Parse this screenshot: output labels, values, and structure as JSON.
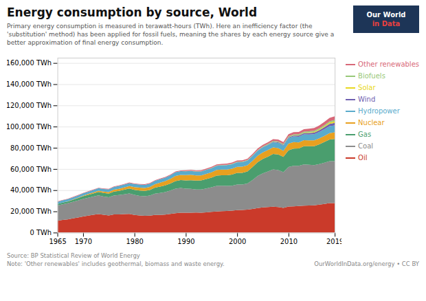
{
  "chart_data": {
    "type": "area",
    "stacked": true,
    "title": "Energy consumption by source, World",
    "subtitle": "Primary energy consumption is measured in terawatt-hours (TWh). Here an inefficiency factor (the 'substitution' method) has been applied for fossil fuels, meaning the shares by each energy source give a better approximation of final energy consumption.",
    "source": "Source: BP Statistical Review of World Energy",
    "note": "Note: 'Other renewables' includes geothermal, biomass and waste energy.",
    "credit": "OurWorldInData.org/energy • CC BY",
    "logo": [
      "Our World",
      "in Data"
    ],
    "x": [
      1965,
      1966,
      1967,
      1968,
      1969,
      1970,
      1971,
      1972,
      1973,
      1974,
      1975,
      1976,
      1977,
      1978,
      1979,
      1980,
      1981,
      1982,
      1983,
      1984,
      1985,
      1986,
      1987,
      1988,
      1989,
      1990,
      1991,
      1992,
      1993,
      1994,
      1995,
      1996,
      1997,
      1998,
      1999,
      2000,
      2001,
      2002,
      2003,
      2004,
      2005,
      2006,
      2007,
      2008,
      2009,
      2010,
      2011,
      2012,
      2013,
      2014,
      2015,
      2016,
      2017,
      2018,
      2019
    ],
    "series": [
      {
        "name": "Oil",
        "color": "#ca3a2a",
        "values": [
          11105,
          11884,
          12478,
          13428,
          14225,
          15261,
          15991,
          16820,
          17485,
          16789,
          16174,
          17136,
          17098,
          17449,
          17617,
          16700,
          16147,
          15846,
          15920,
          16577,
          16627,
          17046,
          17575,
          18269,
          18701,
          18832,
          18806,
          18837,
          18818,
          19153,
          19497,
          19845,
          20156,
          20445,
          20738,
          21258,
          21277,
          21681,
          22337,
          23160,
          23747,
          24060,
          24459,
          24023,
          23209,
          24618,
          24753,
          25018,
          25327,
          25534,
          25791,
          26300,
          27034,
          27800,
          27822
        ]
      },
      {
        "name": "Coal",
        "color": "#8c8c8c",
        "values": [
          14491,
          14847,
          15138,
          15528,
          16095,
          16529,
          16849,
          17120,
          17589,
          17270,
          17146,
          17836,
          18276,
          18665,
          19277,
          18948,
          18568,
          18481,
          18977,
          20169,
          20844,
          21205,
          22085,
          23229,
          23332,
          22578,
          22396,
          21874,
          21829,
          22526,
          23182,
          24210,
          24082,
          23562,
          23491,
          24077,
          24049,
          24561,
          27265,
          30285,
          32165,
          33561,
          35131,
          34992,
          33783,
          37239,
          38291,
          37979,
          39031,
          38476,
          37788,
          38310,
          38968,
          39636,
          39636
        ]
      },
      {
        "name": "Gas",
        "color": "#4a9e6e",
        "values": [
          1395,
          1558,
          1720,
          1946,
          2190,
          2510,
          2817,
          3042,
          3299,
          3394,
          3491,
          3795,
          4025,
          4316,
          4639,
          4723,
          4948,
          5014,
          5282,
          5702,
          5942,
          6200,
          6607,
          7147,
          7499,
          7778,
          8251,
          8277,
          8500,
          8827,
          9098,
          9630,
          9879,
          10098,
          10456,
          10959,
          11112,
          11473,
          12233,
          12999,
          13612,
          14029,
          14655,
          14715,
          14374,
          15748,
          16117,
          16355,
          17090,
          17490,
          17955,
          18682,
          19504,
          20415,
          20897
        ]
      },
      {
        "name": "Nuclear",
        "color": "#e8a020",
        "values": [
          70,
          101,
          165,
          258,
          372,
          540,
          694,
          864,
          1101,
          1282,
          1469,
          1685,
          1905,
          2082,
          2334,
          2524,
          2693,
          2758,
          2952,
          3236,
          3698,
          4083,
          4460,
          4856,
          4934,
          5016,
          5106,
          4928,
          4811,
          4950,
          5109,
          5351,
          5257,
          5398,
          5566,
          5757,
          5717,
          5787,
          5892,
          6091,
          6165,
          6188,
          6147,
          6011,
          5716,
          6310,
          6225,
          5759,
          5651,
          5494,
          5537,
          5617,
          5769,
          6026,
          6207
        ]
      },
      {
        "name": "Hydropower",
        "color": "#5aabcc",
        "values": [
          1940,
          1970,
          2002,
          2063,
          2123,
          2183,
          2227,
          2312,
          2408,
          2459,
          2574,
          2681,
          2730,
          2786,
          2838,
          2907,
          2930,
          2982,
          3094,
          3141,
          3222,
          3232,
          3362,
          3450,
          3487,
          3567,
          3588,
          3622,
          3671,
          3774,
          3829,
          3891,
          3992,
          4086,
          4163,
          4249,
          4295,
          4293,
          4465,
          4583,
          4685,
          4724,
          4754,
          4879,
          4894,
          5215,
          5277,
          5341,
          5503,
          5540,
          5745,
          5984,
          6270,
          6519,
          6510
        ]
      },
      {
        "name": "Wind",
        "color": "#7060b0",
        "values": [
          0,
          0,
          0,
          0,
          0,
          0,
          0,
          0,
          0,
          0,
          0,
          0,
          0,
          0,
          0,
          0,
          0,
          0,
          0,
          0,
          2,
          4,
          5,
          7,
          9,
          11,
          14,
          17,
          20,
          26,
          33,
          41,
          53,
          68,
          90,
          113,
          131,
          157,
          203,
          260,
          313,
          394,
          490,
          549,
          649,
          763,
          905,
          1087,
          1233,
          1416,
          1522,
          1660,
          1856,
          2183,
          2475
        ]
      },
      {
        "name": "Solar",
        "color": "#e8d820",
        "values": [
          0,
          0,
          0,
          0,
          0,
          0,
          0,
          0,
          0,
          0,
          0,
          0,
          0,
          0,
          0,
          0,
          0,
          0,
          0,
          0,
          0,
          0,
          0,
          0,
          1,
          1,
          1,
          2,
          2,
          3,
          3,
          4,
          5,
          6,
          7,
          8,
          10,
          11,
          14,
          17,
          21,
          27,
          35,
          51,
          71,
          100,
          164,
          227,
          351,
          448,
          563,
          658,
          852,
          1108,
          1418
        ]
      },
      {
        "name": "Biofuels",
        "color": "#98c878",
        "values": [
          0,
          0,
          0,
          0,
          0,
          0,
          0,
          0,
          0,
          0,
          0,
          0,
          0,
          0,
          0,
          0,
          0,
          0,
          0,
          0,
          0,
          0,
          0,
          0,
          0,
          200,
          220,
          230,
          240,
          250,
          280,
          310,
          330,
          360,
          390,
          420,
          460,
          490,
          530,
          590,
          660,
          720,
          790,
          860,
          870,
          900,
          970,
          1020,
          1080,
          1120,
          1150,
          1190,
          1230,
          1280,
          1290
        ]
      },
      {
        "name": "Other renewables",
        "color": "#d86878",
        "values": [
          380,
          385,
          390,
          395,
          400,
          410,
          418,
          428,
          440,
          450,
          460,
          475,
          490,
          510,
          525,
          540,
          555,
          570,
          590,
          610,
          630,
          655,
          680,
          710,
          740,
          770,
          800,
          830,
          860,
          900,
          940,
          990,
          1030,
          1080,
          1130,
          1180,
          1220,
          1270,
          1330,
          1400,
          1470,
          1550,
          1630,
          1720,
          1800,
          1920,
          2030,
          2150,
          2280,
          2420,
          2560,
          2750,
          2970,
          3250,
          3500
        ]
      }
    ],
    "xlim": [
      1965,
      2019
    ],
    "xticks": [
      1965,
      1970,
      1980,
      1990,
      2000,
      2010,
      2019
    ],
    "ylim": [
      0,
      165000
    ],
    "yticks": [
      {
        "value": 0,
        "label": "0 TWh"
      },
      {
        "value": 20000,
        "label": "20,000 TWh"
      },
      {
        "value": 40000,
        "label": "40,000 TWh"
      },
      {
        "value": 60000,
        "label": "60,000 TWh"
      },
      {
        "value": 80000,
        "label": "80,000 TWh"
      },
      {
        "value": 100000,
        "label": "100,000 TWh"
      },
      {
        "value": 120000,
        "label": "120,000 TWh"
      },
      {
        "value": 140000,
        "label": "140,000 TWh"
      },
      {
        "value": 160000,
        "label": "160,000 TWh"
      }
    ],
    "grid": true,
    "legend": "right"
  }
}
